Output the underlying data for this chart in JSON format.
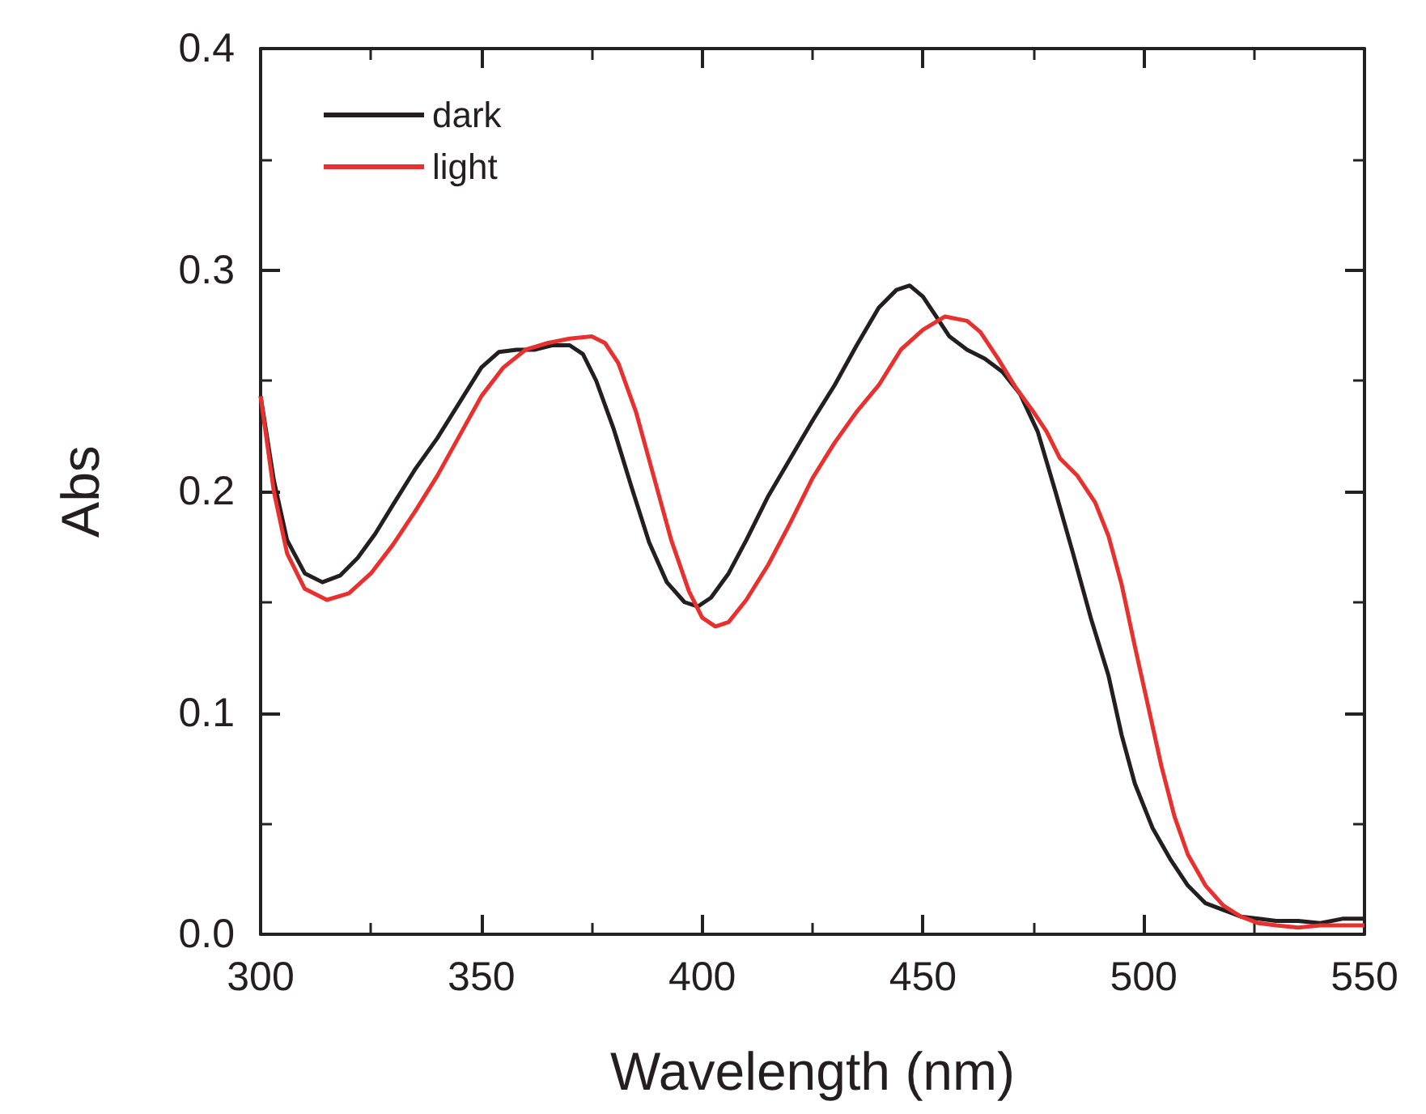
{
  "chart_data": {
    "type": "line",
    "xlabel": "Wavelength (nm)",
    "ylabel": "Abs",
    "xlim": [
      300,
      550
    ],
    "xticks": [
      300,
      350,
      400,
      450,
      500,
      550
    ],
    "ylim": [
      0,
      0.4
    ],
    "yticks": [
      {
        "value": 0,
        "label": "0.0"
      },
      0.1,
      0.2,
      0.3,
      0.4
    ],
    "grid": false,
    "legend": "top left",
    "marker": "none",
    "line_style": "solid",
    "series": [
      {
        "name": "dark",
        "color": "#231f20",
        "x": [
          300,
          303,
          306,
          310,
          314,
          318,
          322,
          326,
          330,
          335,
          340,
          345,
          350,
          354,
          358,
          362,
          366,
          370,
          373,
          376,
          380,
          384,
          388,
          392,
          396,
          399,
          402,
          406,
          410,
          415,
          420,
          425,
          430,
          435,
          440,
          444,
          447,
          450,
          453,
          456,
          460,
          464,
          468,
          472,
          476,
          480,
          484,
          488,
          492,
          495,
          498,
          502,
          506,
          510,
          514,
          518,
          522,
          526,
          530,
          535,
          540,
          545,
          550
        ],
        "values": [
          0.243,
          0.205,
          0.178,
          0.163,
          0.159,
          0.162,
          0.17,
          0.181,
          0.194,
          0.21,
          0.224,
          0.24,
          0.256,
          0.263,
          0.264,
          0.264,
          0.266,
          0.266,
          0.262,
          0.25,
          0.228,
          0.202,
          0.177,
          0.159,
          0.15,
          0.148,
          0.152,
          0.163,
          0.178,
          0.198,
          0.215,
          0.232,
          0.248,
          0.266,
          0.283,
          0.291,
          0.293,
          0.288,
          0.279,
          0.27,
          0.264,
          0.26,
          0.254,
          0.244,
          0.227,
          0.2,
          0.172,
          0.143,
          0.117,
          0.09,
          0.068,
          0.048,
          0.034,
          0.022,
          0.014,
          0.011,
          0.008,
          0.007,
          0.006,
          0.006,
          0.005,
          0.007,
          0.007
        ]
      },
      {
        "name": "light",
        "color": "#e8312f",
        "x": [
          300,
          303,
          306,
          310,
          315,
          320,
          325,
          330,
          335,
          340,
          345,
          350,
          355,
          360,
          365,
          370,
          375,
          378,
          381,
          385,
          389,
          393,
          397,
          400,
          403,
          406,
          410,
          415,
          420,
          425,
          430,
          435,
          440,
          445,
          450,
          455,
          460,
          463,
          467,
          471,
          475,
          478,
          481,
          485,
          489,
          492,
          495,
          498,
          501,
          504,
          507,
          510,
          514,
          518,
          522,
          526,
          530,
          535,
          540,
          545,
          550
        ],
        "values": [
          0.243,
          0.2,
          0.172,
          0.156,
          0.151,
          0.154,
          0.163,
          0.176,
          0.191,
          0.207,
          0.225,
          0.243,
          0.256,
          0.264,
          0.267,
          0.269,
          0.27,
          0.267,
          0.258,
          0.236,
          0.207,
          0.178,
          0.155,
          0.143,
          0.139,
          0.141,
          0.151,
          0.167,
          0.186,
          0.206,
          0.222,
          0.236,
          0.248,
          0.264,
          0.273,
          0.279,
          0.277,
          0.272,
          0.26,
          0.247,
          0.236,
          0.227,
          0.215,
          0.207,
          0.195,
          0.18,
          0.158,
          0.13,
          0.103,
          0.076,
          0.053,
          0.036,
          0.022,
          0.013,
          0.008,
          0.005,
          0.004,
          0.003,
          0.004,
          0.004,
          0.004
        ]
      }
    ]
  }
}
